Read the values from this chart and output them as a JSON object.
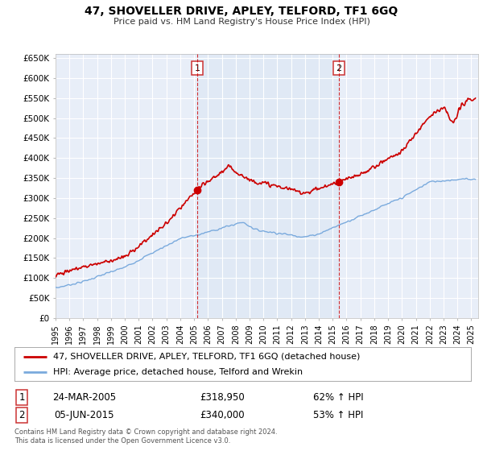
{
  "title": "47, SHOVELLER DRIVE, APLEY, TELFORD, TF1 6GQ",
  "subtitle": "Price paid vs. HM Land Registry's House Price Index (HPI)",
  "ylim": [
    0,
    660000
  ],
  "yticks": [
    0,
    50000,
    100000,
    150000,
    200000,
    250000,
    300000,
    350000,
    400000,
    450000,
    500000,
    550000,
    600000,
    650000
  ],
  "ytick_labels": [
    "£0",
    "£50K",
    "£100K",
    "£150K",
    "£200K",
    "£250K",
    "£300K",
    "£350K",
    "£400K",
    "£450K",
    "£500K",
    "£550K",
    "£600K",
    "£650K"
  ],
  "xlim_start": 1995.0,
  "xlim_end": 2025.5,
  "background_color": "#e8eef8",
  "fig_bg_color": "#ffffff",
  "grid_color": "#ffffff",
  "line1_color": "#cc0000",
  "line2_color": "#7aaadd",
  "shade_color": "#dde8f5",
  "sale1_date": 2005.23,
  "sale1_price": 318950,
  "sale2_date": 2015.43,
  "sale2_price": 340000,
  "legend_line1": "47, SHOVELLER DRIVE, APLEY, TELFORD, TF1 6GQ (detached house)",
  "legend_line2": "HPI: Average price, detached house, Telford and Wrekin",
  "table_row1": [
    "1",
    "24-MAR-2005",
    "£318,950",
    "62% ↑ HPI"
  ],
  "table_row2": [
    "2",
    "05-JUN-2015",
    "£340,000",
    "53% ↑ HPI"
  ],
  "footer1": "Contains HM Land Registry data © Crown copyright and database right 2024.",
  "footer2": "This data is licensed under the Open Government Licence v3.0."
}
